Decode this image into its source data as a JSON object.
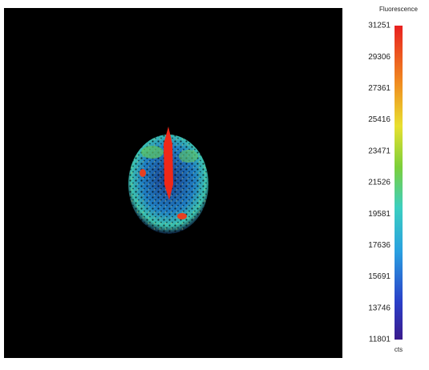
{
  "colorbar": {
    "title": "Fluorescence",
    "unit": "cts",
    "ticks": [
      31251,
      29306,
      27361,
      25416,
      23471,
      21526,
      19581,
      17636,
      15691,
      13746,
      11801
    ]
  }
}
